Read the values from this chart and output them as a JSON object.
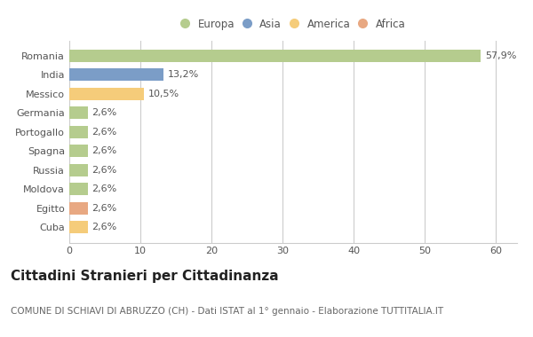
{
  "categories": [
    "Romania",
    "India",
    "Messico",
    "Germania",
    "Portogallo",
    "Spagna",
    "Russia",
    "Moldova",
    "Egitto",
    "Cuba"
  ],
  "values": [
    57.9,
    13.2,
    10.5,
    2.6,
    2.6,
    2.6,
    2.6,
    2.6,
    2.6,
    2.6
  ],
  "labels": [
    "57,9%",
    "13,2%",
    "10,5%",
    "2,6%",
    "2,6%",
    "2,6%",
    "2,6%",
    "2,6%",
    "2,6%",
    "2,6%"
  ],
  "colors": [
    "#b5cc8e",
    "#7b9dc7",
    "#f5cc7a",
    "#b5cc8e",
    "#b5cc8e",
    "#b5cc8e",
    "#b5cc8e",
    "#b5cc8e",
    "#e8a882",
    "#f5cc7a"
  ],
  "legend_labels": [
    "Europa",
    "Asia",
    "America",
    "Africa"
  ],
  "legend_colors": [
    "#b5cc8e",
    "#7b9dc7",
    "#f5cc7a",
    "#e8a882"
  ],
  "title": "Cittadini Stranieri per Cittadinanza",
  "subtitle": "COMUNE DI SCHIAVI DI ABRUZZO (CH) - Dati ISTAT al 1° gennaio - Elaborazione TUTTITALIA.IT",
  "xlim": [
    0,
    63
  ],
  "xticks": [
    0,
    10,
    20,
    30,
    40,
    50,
    60
  ],
  "background_color": "#ffffff",
  "plot_bg_color": "#ffffff",
  "title_fontsize": 11,
  "subtitle_fontsize": 7.5,
  "label_fontsize": 8,
  "tick_fontsize": 8,
  "legend_fontsize": 8.5
}
